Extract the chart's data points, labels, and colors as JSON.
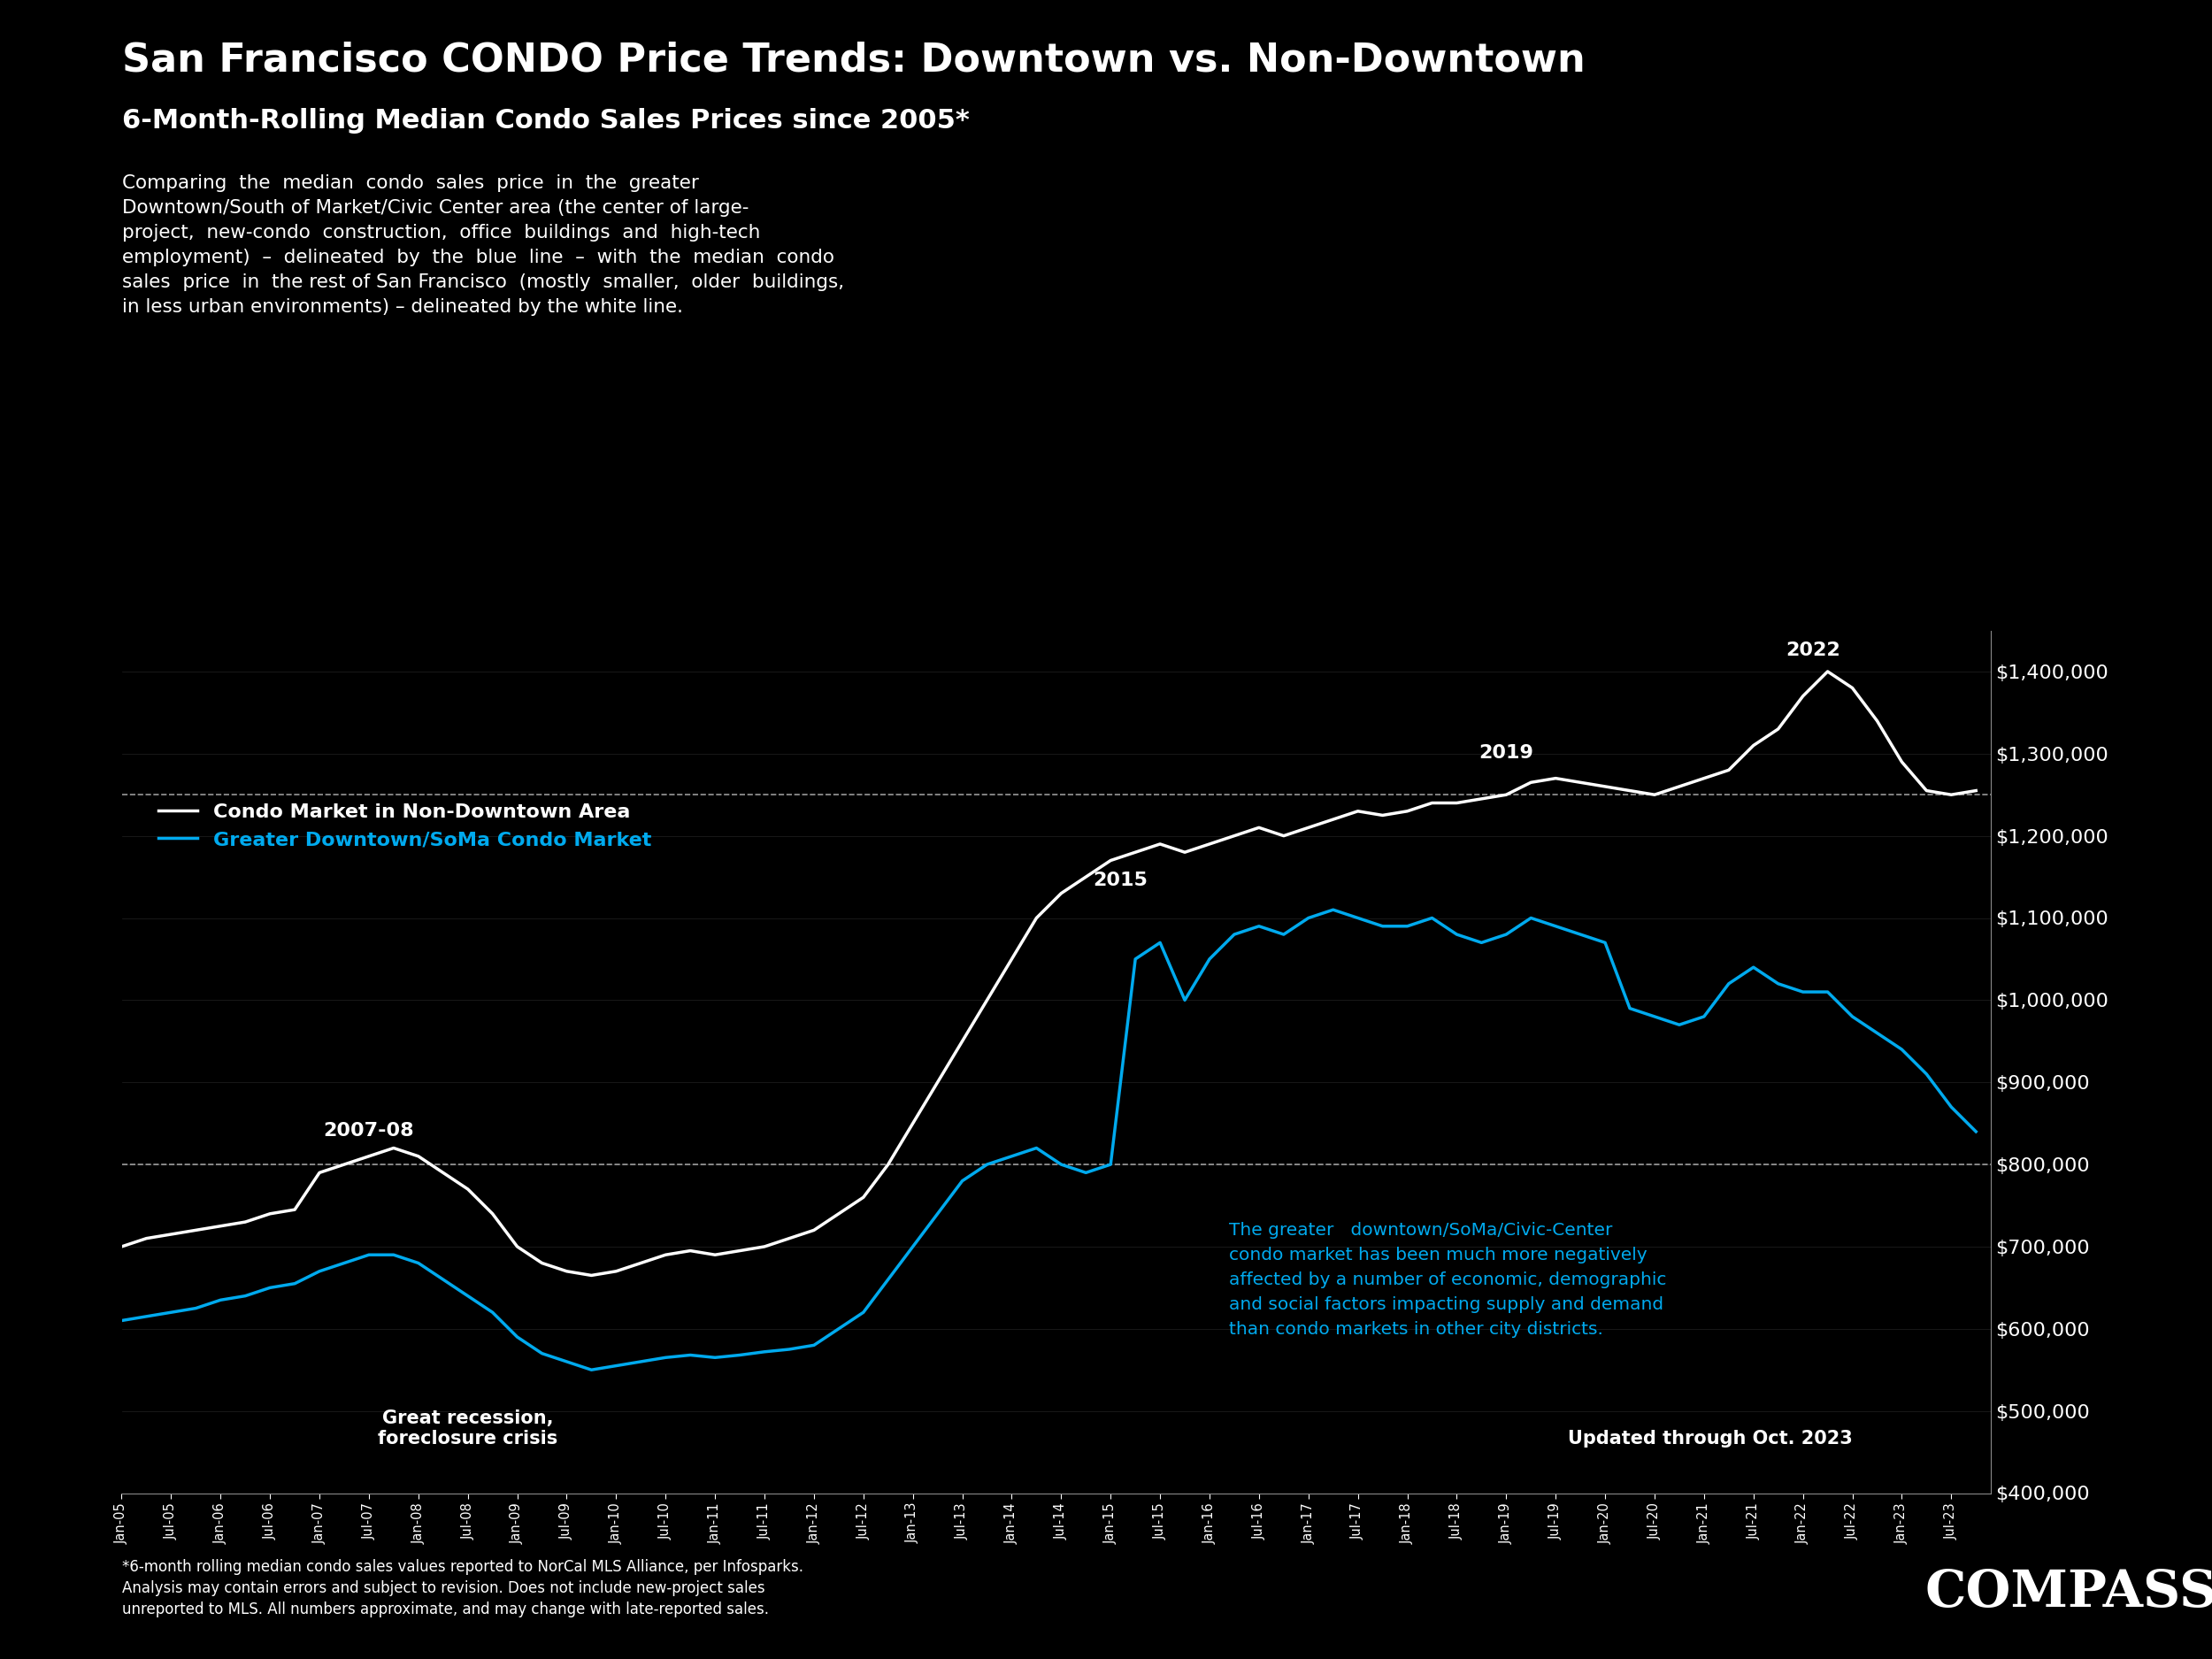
{
  "title": "San Francisco CONDO Price Trends: Downtown vs. Non-Downtown",
  "subtitle": "6-Month-Rolling Median Condo Sales Prices since 2005*",
  "bg_color": "#000000",
  "text_color": "#ffffff",
  "white_line_color": "#ffffff",
  "blue_line_color": "#00aaee",
  "ylabel_color": "#ffffff",
  "annotation_text": "Comparing the median condo sales price in the greater Downtown/South of Market/Civic Center area (the center of large-project, new-condo construction, office buildings and high-tech employment) – delineated by the blue line – with the median condo sales price in the rest of San Francisco (mostly smaller, older buildings, in less urban environments) – delineated by the white line.",
  "legend_white": "Condo Market in Non-Downtown Area",
  "legend_blue": "Greater Downtown/SoMa Condo Market",
  "label_2007": "2007-08",
  "label_2015": "2015",
  "label_2019": "2019",
  "label_2022": "2022",
  "label_recession": "Great recession,\nforeclosure crisis",
  "label_updated": "Updated through Oct. 2023",
  "label_downtown_note": "The greater   downtown/SoMa/Civic-Center\ncondo market has been much more negatively\naffected by a number of economic, demographic\nand social factors impacting supply and demand\nthan condo markets in other city districts.",
  "footnote": "*6-month rolling median condo sales values reported to NorCal MLS Alliance, per Infosparks.\nAnalysis may contain errors and subject to revision. Does not include new-project sales\nunreported to MLS. All numbers approximate, and may change with late-reported sales.",
  "compass_text": "COMPASS",
  "ylim": [
    400000,
    1450000
  ],
  "yticks": [
    400000,
    500000,
    600000,
    700000,
    800000,
    900000,
    1000000,
    1100000,
    1200000,
    1300000,
    1400000
  ],
  "dashed_line_1": 1250000,
  "dashed_line_2": 800000,
  "non_downtown_x": [
    2005.0,
    2005.25,
    2005.5,
    2005.75,
    2006.0,
    2006.25,
    2006.5,
    2006.75,
    2007.0,
    2007.25,
    2007.5,
    2007.75,
    2008.0,
    2008.25,
    2008.5,
    2008.75,
    2009.0,
    2009.25,
    2009.5,
    2009.75,
    2010.0,
    2010.25,
    2010.5,
    2010.75,
    2011.0,
    2011.25,
    2011.5,
    2011.75,
    2012.0,
    2012.25,
    2012.5,
    2012.75,
    2013.0,
    2013.25,
    2013.5,
    2013.75,
    2014.0,
    2014.25,
    2014.5,
    2014.75,
    2015.0,
    2015.25,
    2015.5,
    2015.75,
    2016.0,
    2016.25,
    2016.5,
    2016.75,
    2017.0,
    2017.25,
    2017.5,
    2017.75,
    2018.0,
    2018.25,
    2018.5,
    2018.75,
    2019.0,
    2019.25,
    2019.5,
    2019.75,
    2020.0,
    2020.25,
    2020.5,
    2020.75,
    2021.0,
    2021.25,
    2021.5,
    2021.75,
    2022.0,
    2022.25,
    2022.5,
    2022.75,
    2023.0,
    2023.25,
    2023.5,
    2023.75
  ],
  "non_downtown_y": [
    700000,
    710000,
    715000,
    720000,
    725000,
    730000,
    740000,
    745000,
    790000,
    800000,
    810000,
    820000,
    810000,
    790000,
    770000,
    740000,
    700000,
    680000,
    670000,
    665000,
    670000,
    680000,
    690000,
    695000,
    690000,
    695000,
    700000,
    710000,
    720000,
    740000,
    760000,
    800000,
    850000,
    900000,
    950000,
    1000000,
    1050000,
    1100000,
    1130000,
    1150000,
    1170000,
    1180000,
    1190000,
    1180000,
    1190000,
    1200000,
    1210000,
    1200000,
    1210000,
    1220000,
    1230000,
    1225000,
    1230000,
    1240000,
    1240000,
    1245000,
    1250000,
    1265000,
    1270000,
    1265000,
    1260000,
    1255000,
    1250000,
    1260000,
    1270000,
    1280000,
    1310000,
    1330000,
    1370000,
    1400000,
    1380000,
    1340000,
    1290000,
    1255000,
    1250000,
    1255000
  ],
  "downtown_x": [
    2005.0,
    2005.25,
    2005.5,
    2005.75,
    2006.0,
    2006.25,
    2006.5,
    2006.75,
    2007.0,
    2007.25,
    2007.5,
    2007.75,
    2008.0,
    2008.25,
    2008.5,
    2008.75,
    2009.0,
    2009.25,
    2009.5,
    2009.75,
    2010.0,
    2010.25,
    2010.5,
    2010.75,
    2011.0,
    2011.25,
    2011.5,
    2011.75,
    2012.0,
    2012.25,
    2012.5,
    2012.75,
    2013.0,
    2013.25,
    2013.5,
    2013.75,
    2014.0,
    2014.25,
    2014.5,
    2014.75,
    2015.0,
    2015.25,
    2015.5,
    2015.75,
    2016.0,
    2016.25,
    2016.5,
    2016.75,
    2017.0,
    2017.25,
    2017.5,
    2017.75,
    2018.0,
    2018.25,
    2018.5,
    2018.75,
    2019.0,
    2019.25,
    2019.5,
    2019.75,
    2020.0,
    2020.25,
    2020.5,
    2020.75,
    2021.0,
    2021.25,
    2021.5,
    2021.75,
    2022.0,
    2022.25,
    2022.5,
    2022.75,
    2023.0,
    2023.25,
    2023.5,
    2023.75
  ],
  "downtown_y": [
    610000,
    615000,
    620000,
    625000,
    635000,
    640000,
    650000,
    655000,
    670000,
    680000,
    690000,
    690000,
    680000,
    660000,
    640000,
    620000,
    590000,
    570000,
    560000,
    550000,
    555000,
    560000,
    565000,
    568000,
    565000,
    568000,
    572000,
    575000,
    580000,
    600000,
    620000,
    660000,
    700000,
    740000,
    780000,
    800000,
    810000,
    820000,
    800000,
    790000,
    800000,
    1050000,
    1070000,
    1000000,
    1050000,
    1080000,
    1090000,
    1080000,
    1100000,
    1110000,
    1100000,
    1090000,
    1090000,
    1100000,
    1080000,
    1070000,
    1080000,
    1100000,
    1090000,
    1080000,
    1070000,
    990000,
    980000,
    970000,
    980000,
    1020000,
    1040000,
    1020000,
    1010000,
    1010000,
    980000,
    960000,
    940000,
    910000,
    870000,
    840000
  ]
}
